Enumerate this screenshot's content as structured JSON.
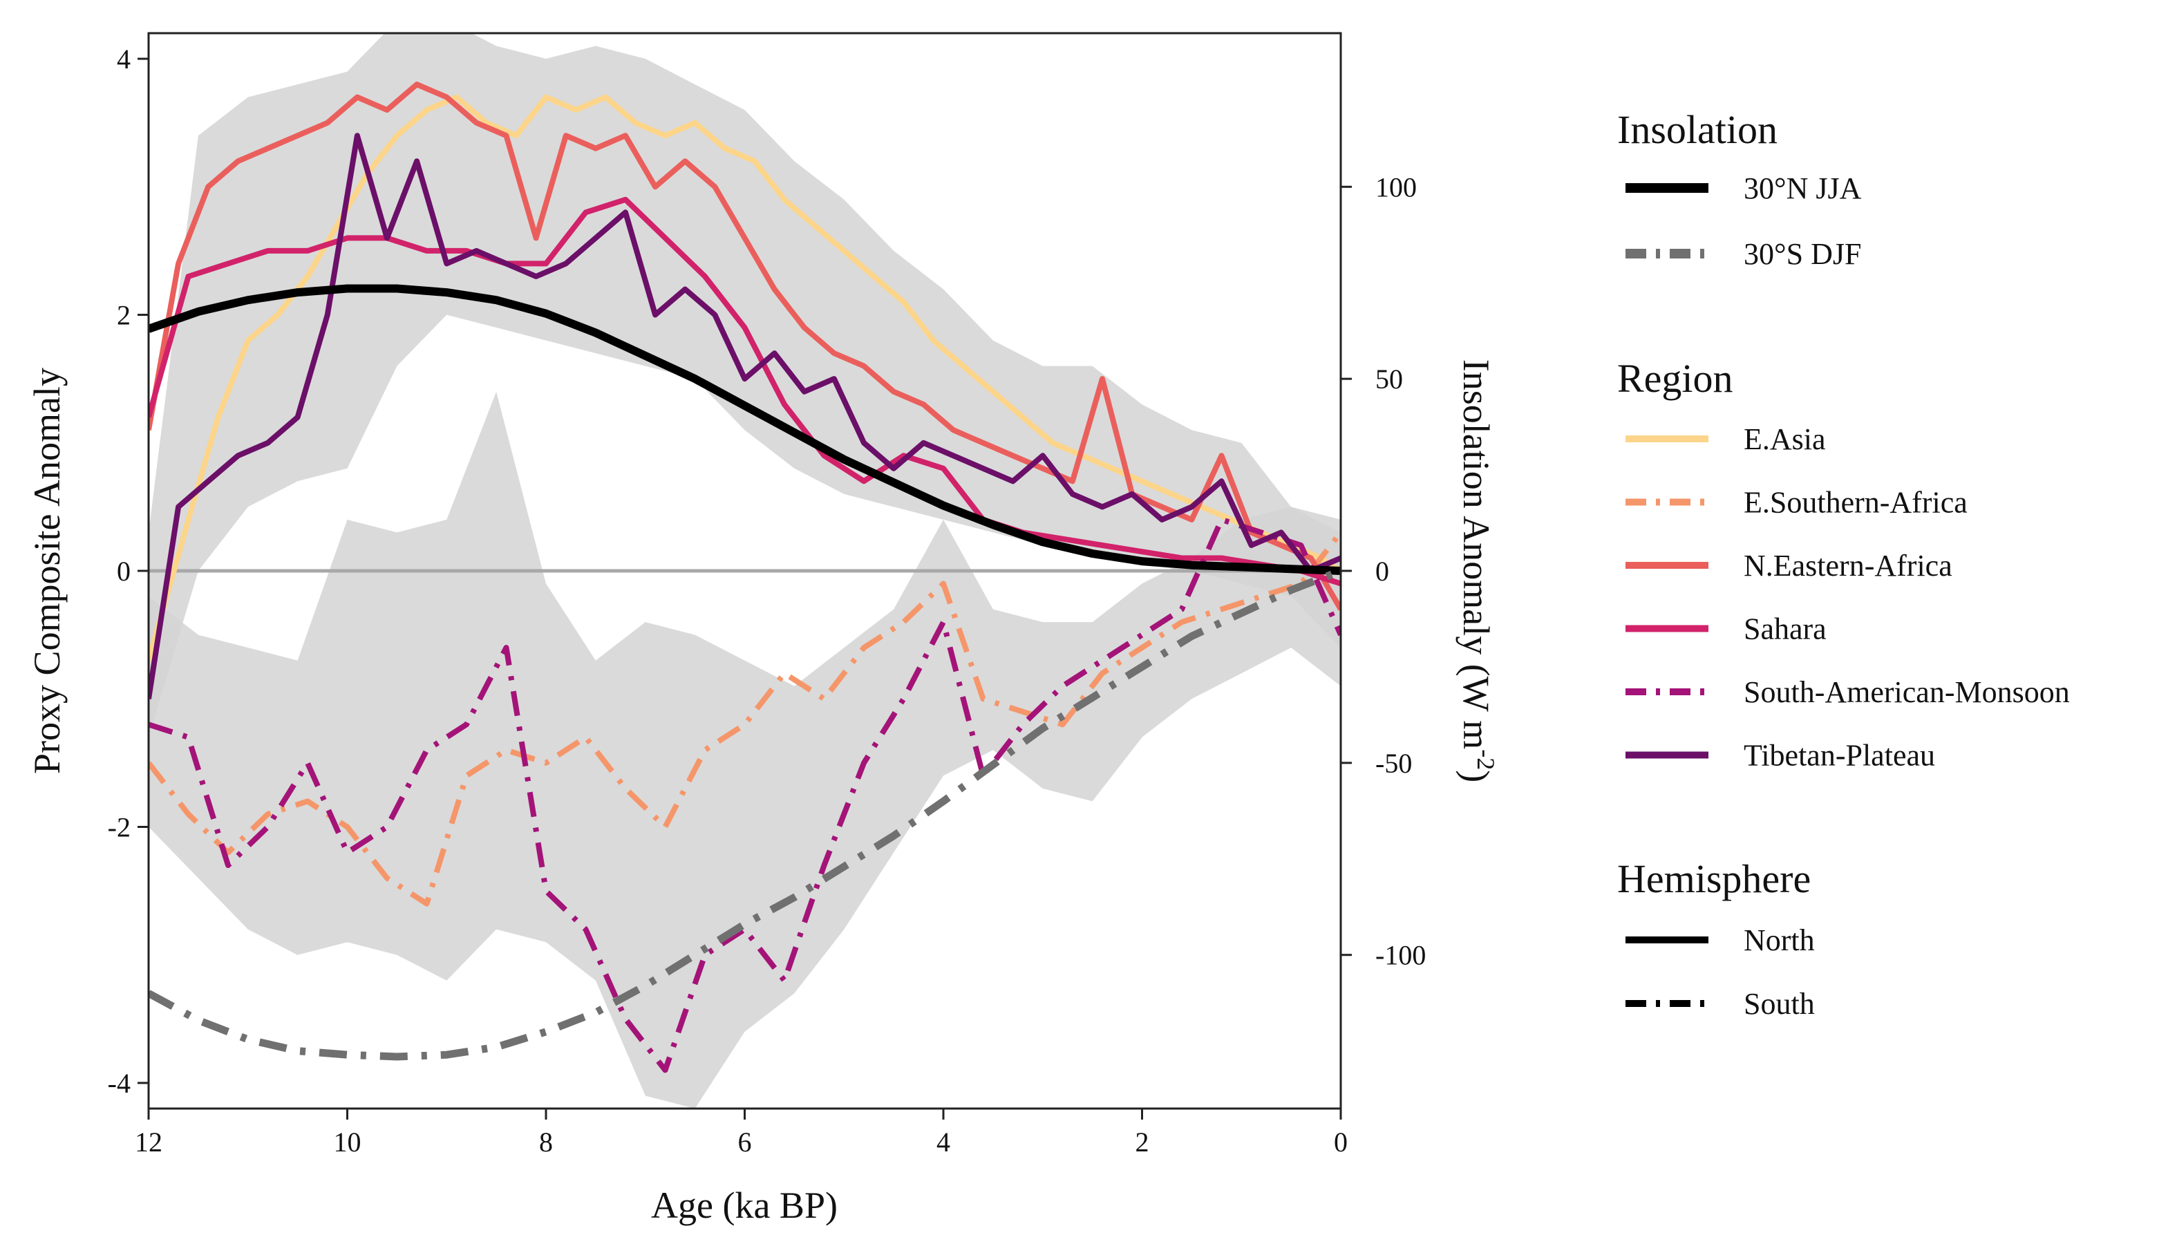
{
  "chart_data": {
    "type": "line",
    "xlabel": "Age (ka BP)",
    "ylabel": "Proxy Composite Anomaly",
    "y2label": "Insolation Anomaly (W m",
    "y2label_sup": "-2",
    "y2label_close": ")",
    "xlim": [
      12,
      0
    ],
    "ylim": [
      -4.2,
      4.2
    ],
    "y2lim": [
      -140,
      140
    ],
    "xticks": [
      12,
      10,
      8,
      6,
      4,
      2,
      0
    ],
    "yticks": [
      4,
      2,
      0,
      -2,
      -4
    ],
    "y2ticks": [
      100,
      50,
      0,
      -50,
      -100
    ],
    "zero_line": true,
    "grid": false,
    "legend_position": "right",
    "legend": {
      "insolation_title": "Insolation",
      "insolation": [
        {
          "label": "30°N JJA",
          "color": "#000000",
          "style": "solid"
        },
        {
          "label": "30°S DJF",
          "color": "#707070",
          "style": "dashdot"
        }
      ],
      "region_title": "Region",
      "regions": [
        {
          "label": "E.Asia",
          "color": "#fcd58a",
          "style": "solid"
        },
        {
          "label": "E.Southern-Africa",
          "color": "#f5966a",
          "style": "dashdot"
        },
        {
          "label": "N.Eastern-Africa",
          "color": "#ea5f5c",
          "style": "solid"
        },
        {
          "label": "Sahara",
          "color": "#d1226a",
          "style": "solid"
        },
        {
          "label": "South-American-Monsoon",
          "color": "#a41378",
          "style": "dashdot"
        },
        {
          "label": "Tibetan-Plateau",
          "color": "#6b0f68",
          "style": "solid"
        }
      ],
      "hemisphere_title": "Hemisphere",
      "hemispheres": [
        {
          "label": "North",
          "style": "solid"
        },
        {
          "label": "South",
          "style": "dashdot"
        }
      ]
    },
    "insolation_series": [
      {
        "name": "30°N JJA",
        "axis": "right",
        "x": [
          12,
          11.5,
          11,
          10.5,
          10,
          9.5,
          9,
          8.5,
          8,
          7.5,
          7,
          6.5,
          6,
          5.5,
          5,
          4.5,
          4,
          3.5,
          3,
          2.5,
          2,
          1.5,
          1,
          0.5,
          0
        ],
        "y": [
          63,
          67.5,
          70.5,
          72.5,
          73.5,
          73.5,
          72.5,
          70.5,
          67,
          62,
          56,
          50,
          43,
          36,
          29,
          23,
          17,
          12,
          7.5,
          4.5,
          2.5,
          1.5,
          1,
          0.5,
          0
        ]
      },
      {
        "name": "30°S DJF",
        "axis": "right",
        "x": [
          12,
          11.5,
          11,
          10.5,
          10,
          9.5,
          9,
          8.5,
          8,
          7.5,
          7,
          6.5,
          6,
          5.5,
          5,
          4.5,
          4,
          3.5,
          3,
          2.5,
          2,
          1.5,
          1,
          0.5,
          0
        ],
        "y": [
          -110,
          -117,
          -122,
          -125,
          -126,
          -126.5,
          -126,
          -124,
          -120,
          -115,
          -108,
          -100,
          -92,
          -85,
          -77,
          -69,
          -60,
          -50.5,
          -41,
          -33,
          -25,
          -17,
          -11,
          -5,
          0
        ]
      }
    ],
    "series": [
      {
        "name": "E.Asia",
        "axis": "left",
        "x": [
          12,
          11.6,
          11.3,
          11,
          10.7,
          10.4,
          10.1,
          9.8,
          9.5,
          9.2,
          8.9,
          8.6,
          8.3,
          8.0,
          7.7,
          7.4,
          7.1,
          6.8,
          6.5,
          6.2,
          5.9,
          5.6,
          5.3,
          5.0,
          4.7,
          4.4,
          4.1,
          3.8,
          3.5,
          3.2,
          2.9,
          2.6,
          2.3,
          2.0,
          1.7,
          1.4,
          1.1,
          0.8,
          0.5,
          0.2,
          0
        ],
        "y": [
          -0.7,
          0.4,
          1.2,
          1.8,
          2.0,
          2.3,
          2.7,
          3.1,
          3.4,
          3.6,
          3.7,
          3.5,
          3.4,
          3.7,
          3.6,
          3.7,
          3.5,
          3.4,
          3.5,
          3.3,
          3.2,
          2.9,
          2.7,
          2.5,
          2.3,
          2.1,
          1.8,
          1.6,
          1.4,
          1.2,
          1.0,
          0.9,
          0.8,
          0.7,
          0.6,
          0.5,
          0.4,
          0.3,
          0.2,
          0.1,
          0
        ]
      },
      {
        "name": "E.Southern-Africa",
        "axis": "left",
        "x": [
          12,
          11.6,
          11.2,
          10.8,
          10.4,
          10.0,
          9.6,
          9.2,
          8.8,
          8.4,
          8.0,
          7.6,
          7.2,
          6.8,
          6.4,
          6.0,
          5.6,
          5.2,
          4.8,
          4.4,
          4.0,
          3.6,
          3.2,
          2.8,
          2.4,
          2.0,
          1.6,
          1.2,
          0.8,
          0.4,
          0
        ],
        "y": [
          -1.5,
          -1.9,
          -2.2,
          -1.9,
          -1.8,
          -2.0,
          -2.4,
          -2.6,
          -1.6,
          -1.4,
          -1.5,
          -1.3,
          -1.7,
          -2.0,
          -1.4,
          -1.2,
          -0.8,
          -1.0,
          -0.6,
          -0.4,
          -0.1,
          -1.0,
          -1.1,
          -1.2,
          -0.8,
          -0.6,
          -0.4,
          -0.3,
          -0.2,
          -0.1,
          0.3
        ]
      },
      {
        "name": "N.Eastern-Africa",
        "axis": "left",
        "x": [
          12,
          11.7,
          11.4,
          11.1,
          10.8,
          10.5,
          10.2,
          9.9,
          9.6,
          9.3,
          9.0,
          8.7,
          8.4,
          8.1,
          7.8,
          7.5,
          7.2,
          6.9,
          6.6,
          6.3,
          6.0,
          5.7,
          5.4,
          5.1,
          4.8,
          4.5,
          4.2,
          3.9,
          3.6,
          3.3,
          3.0,
          2.7,
          2.4,
          2.1,
          1.8,
          1.5,
          1.2,
          0.9,
          0.6,
          0.3,
          0
        ],
        "y": [
          1.1,
          2.4,
          3.0,
          3.2,
          3.3,
          3.4,
          3.5,
          3.7,
          3.6,
          3.8,
          3.7,
          3.5,
          3.4,
          2.6,
          3.4,
          3.3,
          3.4,
          3.0,
          3.2,
          3.0,
          2.6,
          2.2,
          1.9,
          1.7,
          1.6,
          1.4,
          1.3,
          1.1,
          1.0,
          0.9,
          0.8,
          0.7,
          1.5,
          0.6,
          0.5,
          0.4,
          0.9,
          0.3,
          0.2,
          0.1,
          -0.3
        ]
      },
      {
        "name": "Sahara",
        "axis": "left",
        "x": [
          12,
          11.6,
          11.2,
          10.8,
          10.4,
          10.0,
          9.6,
          9.2,
          8.8,
          8.4,
          8.0,
          7.6,
          7.2,
          6.8,
          6.4,
          6.0,
          5.6,
          5.2,
          4.8,
          4.4,
          4.0,
          3.6,
          3.2,
          2.8,
          2.4,
          2.0,
          1.6,
          1.2,
          0.8,
          0.4,
          0
        ],
        "y": [
          1.2,
          2.3,
          2.4,
          2.5,
          2.5,
          2.6,
          2.6,
          2.5,
          2.5,
          2.4,
          2.4,
          2.8,
          2.9,
          2.6,
          2.3,
          1.9,
          1.3,
          0.9,
          0.7,
          0.9,
          0.8,
          0.4,
          0.3,
          0.25,
          0.2,
          0.15,
          0.1,
          0.1,
          0.05,
          0.0,
          -0.1
        ]
      },
      {
        "name": "South-American-Monsoon",
        "axis": "left",
        "x": [
          12,
          11.6,
          11.2,
          10.8,
          10.4,
          10.0,
          9.6,
          9.2,
          8.8,
          8.4,
          8.0,
          7.6,
          7.2,
          6.8,
          6.4,
          6.0,
          5.6,
          5.2,
          4.8,
          4.4,
          4.0,
          3.6,
          3.2,
          2.8,
          2.4,
          2.0,
          1.6,
          1.2,
          0.8,
          0.4,
          0
        ],
        "y": [
          -1.2,
          -1.3,
          -2.3,
          -2.0,
          -1.5,
          -2.2,
          -2.0,
          -1.4,
          -1.2,
          -0.6,
          -2.5,
          -2.8,
          -3.5,
          -3.9,
          -3.0,
          -2.8,
          -3.2,
          -2.3,
          -1.5,
          -1.0,
          -0.4,
          -1.6,
          -1.2,
          -0.9,
          -0.7,
          -0.5,
          -0.3,
          0.4,
          0.3,
          0.2,
          -0.5
        ]
      },
      {
        "name": "Tibetan-Plateau",
        "axis": "left",
        "x": [
          12,
          11.7,
          11.4,
          11.1,
          10.8,
          10.5,
          10.2,
          9.9,
          9.6,
          9.3,
          9.0,
          8.7,
          8.4,
          8.1,
          7.8,
          7.5,
          7.2,
          6.9,
          6.6,
          6.3,
          6.0,
          5.7,
          5.4,
          5.1,
          4.8,
          4.5,
          4.2,
          3.9,
          3.6,
          3.3,
          3.0,
          2.7,
          2.4,
          2.1,
          1.8,
          1.5,
          1.2,
          0.9,
          0.6,
          0.3,
          0
        ],
        "y": [
          -1.0,
          0.5,
          0.7,
          0.9,
          1.0,
          1.2,
          2.0,
          3.4,
          2.6,
          3.2,
          2.4,
          2.5,
          2.4,
          2.3,
          2.4,
          2.6,
          2.8,
          2.0,
          2.2,
          2.0,
          1.5,
          1.7,
          1.4,
          1.5,
          1.0,
          0.8,
          1.0,
          0.9,
          0.8,
          0.7,
          0.9,
          0.6,
          0.5,
          0.6,
          0.4,
          0.5,
          0.7,
          0.2,
          0.3,
          0.0,
          0.1
        ]
      }
    ],
    "shaded_bands": [
      {
        "name": "north-range",
        "x": [
          12,
          11.5,
          11,
          10.5,
          10,
          9.5,
          9,
          8.5,
          8,
          7.5,
          7,
          6.5,
          6,
          5.5,
          5,
          4.5,
          4,
          3.5,
          3,
          2.5,
          2,
          1.5,
          1,
          0.5,
          0
        ],
        "upper": [
          0.3,
          3.4,
          3.7,
          3.8,
          3.9,
          4.3,
          4.3,
          4.1,
          4.0,
          4.1,
          4.0,
          3.8,
          3.6,
          3.2,
          2.9,
          2.5,
          2.2,
          1.8,
          1.6,
          1.6,
          1.3,
          1.1,
          1.0,
          0.5,
          0.3
        ],
        "lower": [
          -1.3,
          0.0,
          0.5,
          0.7,
          0.8,
          1.6,
          2.0,
          1.9,
          1.8,
          1.7,
          1.6,
          1.5,
          1.1,
          0.8,
          0.6,
          0.5,
          0.4,
          0.3,
          0.2,
          0.1,
          0.05,
          0.0,
          -0.1,
          -0.2,
          -0.6
        ]
      },
      {
        "name": "south-range",
        "x": [
          12,
          11.5,
          11,
          10.5,
          10,
          9.5,
          9,
          8.5,
          8,
          7.5,
          7,
          6.5,
          6,
          5.5,
          5,
          4.5,
          4,
          3.5,
          3,
          2.5,
          2,
          1.5,
          1,
          0.5,
          0
        ],
        "upper": [
          -0.2,
          -0.5,
          -0.6,
          -0.7,
          0.4,
          0.3,
          0.4,
          1.4,
          -0.1,
          -0.7,
          -0.4,
          -0.5,
          -0.7,
          -0.9,
          -0.6,
          -0.3,
          0.4,
          -0.3,
          -0.4,
          -0.4,
          -0.1,
          0.1,
          0.4,
          0.5,
          0.4
        ],
        "lower": [
          -2.0,
          -2.4,
          -2.8,
          -3.0,
          -2.9,
          -3.0,
          -3.2,
          -2.8,
          -2.9,
          -3.2,
          -4.1,
          -4.2,
          -3.6,
          -3.3,
          -2.8,
          -2.2,
          -1.6,
          -1.4,
          -1.7,
          -1.8,
          -1.3,
          -1.0,
          -0.8,
          -0.6,
          -0.9
        ]
      }
    ]
  }
}
